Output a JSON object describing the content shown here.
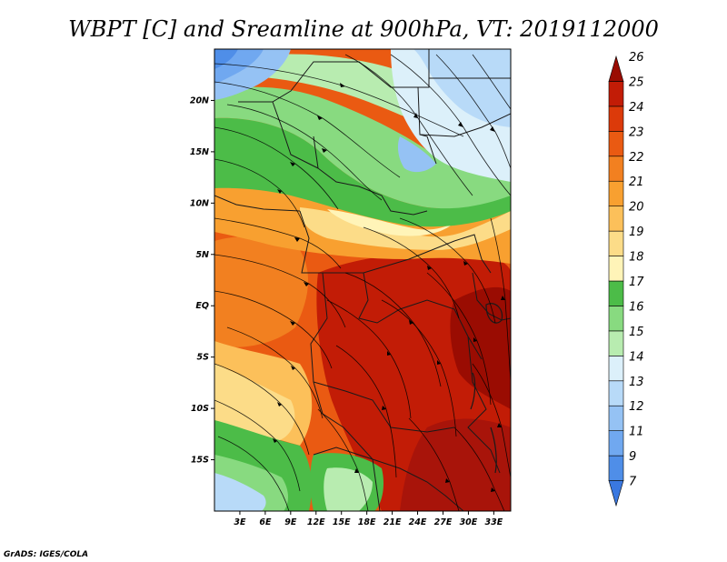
{
  "title": "WBPT [C] and Sreamline at 900hPa, VT: 2019112000",
  "credit": "GrADS: IGES/COLA",
  "map": {
    "lon_range": [
      0,
      35
    ],
    "lat_range": [
      -20,
      25
    ],
    "lon_ticks": [
      {
        "value": 3,
        "label": "3E"
      },
      {
        "value": 6,
        "label": "6E"
      },
      {
        "value": 9,
        "label": "9E"
      },
      {
        "value": 12,
        "label": "12E"
      },
      {
        "value": 15,
        "label": "15E"
      },
      {
        "value": 18,
        "label": "18E"
      },
      {
        "value": 21,
        "label": "21E"
      },
      {
        "value": 24,
        "label": "24E"
      },
      {
        "value": 27,
        "label": "27E"
      },
      {
        "value": 30,
        "label": "30E"
      },
      {
        "value": 33,
        "label": "33E"
      }
    ],
    "lat_ticks": [
      {
        "value": 20,
        "label": "20N"
      },
      {
        "value": 15,
        "label": "15N"
      },
      {
        "value": 10,
        "label": "10N"
      },
      {
        "value": 5,
        "label": "5N"
      },
      {
        "value": 0,
        "label": "EQ"
      },
      {
        "value": -5,
        "label": "5S"
      },
      {
        "value": -10,
        "label": "10S"
      },
      {
        "value": -15,
        "label": "15S"
      }
    ]
  },
  "colorbar": {
    "levels": [
      "7",
      "9",
      "11",
      "12",
      "13",
      "14",
      "15",
      "16",
      "17",
      "18",
      "19",
      "20",
      "21",
      "22",
      "23",
      "24",
      "25",
      "26"
    ],
    "colors": [
      "#3a78e0",
      "#4f8ee8",
      "#70a8f0",
      "#95c2f4",
      "#b8daf8",
      "#dcf0fa",
      "#b8ecb0",
      "#88da80",
      "#4cbc48",
      "#fff4b8",
      "#fcdc88",
      "#fcc05a",
      "#f8a030",
      "#f28020",
      "#ea5a12",
      "#dc3a0a",
      "#c21c06",
      "#9a0c02"
    ]
  }
}
